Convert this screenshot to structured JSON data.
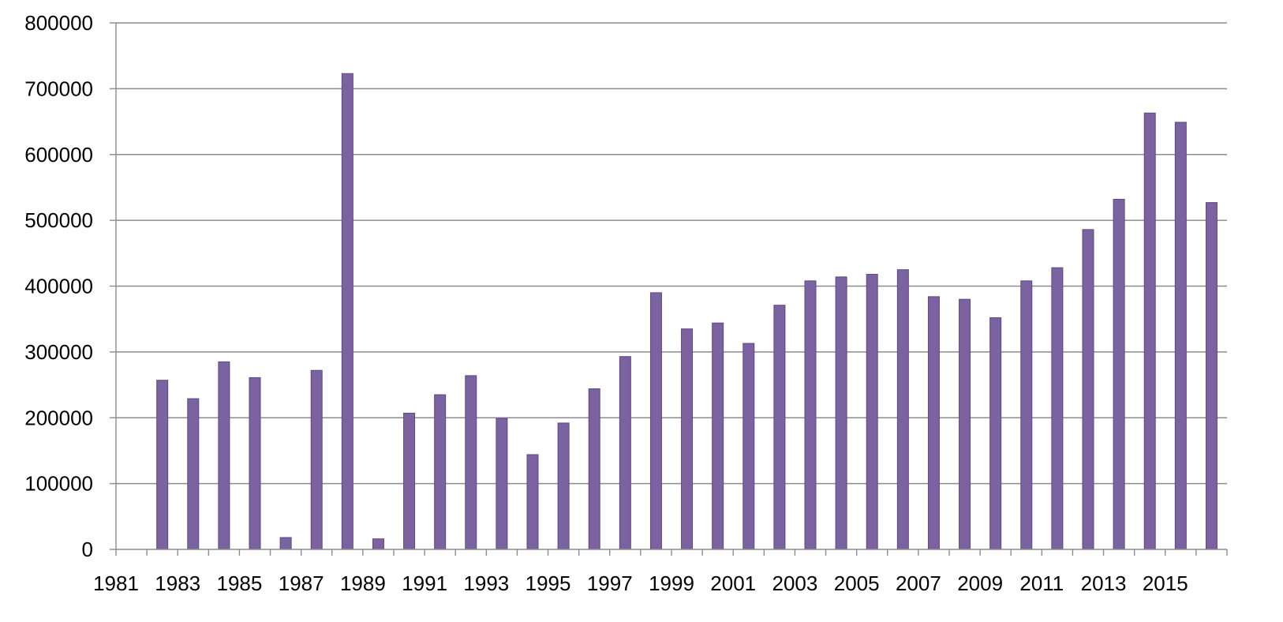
{
  "chart_data": {
    "type": "bar",
    "title": "",
    "xlabel": "",
    "ylabel": "",
    "ylim": [
      0,
      800000
    ],
    "yticks": [
      "0",
      "100000",
      "200000",
      "300000",
      "400000",
      "500000",
      "600000",
      "700000",
      "800000"
    ],
    "grid": true,
    "categories": [
      "1981",
      "1982",
      "1983",
      "1984",
      "1985",
      "1986",
      "1987",
      "1988",
      "1989",
      "1990",
      "1991",
      "1992",
      "1993",
      "1994",
      "1995",
      "1996",
      "1997",
      "1998",
      "1999",
      "2000",
      "2001",
      "2002",
      "2003",
      "2004",
      "2005",
      "2006",
      "2007",
      "2008",
      "2009",
      "2010",
      "2011",
      "2012",
      "2013",
      "2014",
      "2015",
      "2016"
    ],
    "xtick_labels": [
      "1981",
      "1983",
      "1985",
      "1987",
      "1989",
      "1991",
      "1993",
      "1995",
      "1997",
      "1999",
      "2001",
      "2003",
      "2005",
      "2007",
      "2009",
      "2011",
      "2013",
      "2015"
    ],
    "series": [
      {
        "values": [
          0,
          257000,
          229000,
          285000,
          261000,
          18000,
          272000,
          723000,
          16000,
          207000,
          235000,
          264000,
          199000,
          144000,
          192000,
          244000,
          293000,
          390000,
          335000,
          344000,
          313000,
          371000,
          408000,
          414000,
          418000,
          425000,
          384000,
          380000,
          352000,
          408000,
          428000,
          486000,
          532000,
          663000,
          649000,
          527000
        ],
        "color": "#7b62a0"
      }
    ]
  }
}
